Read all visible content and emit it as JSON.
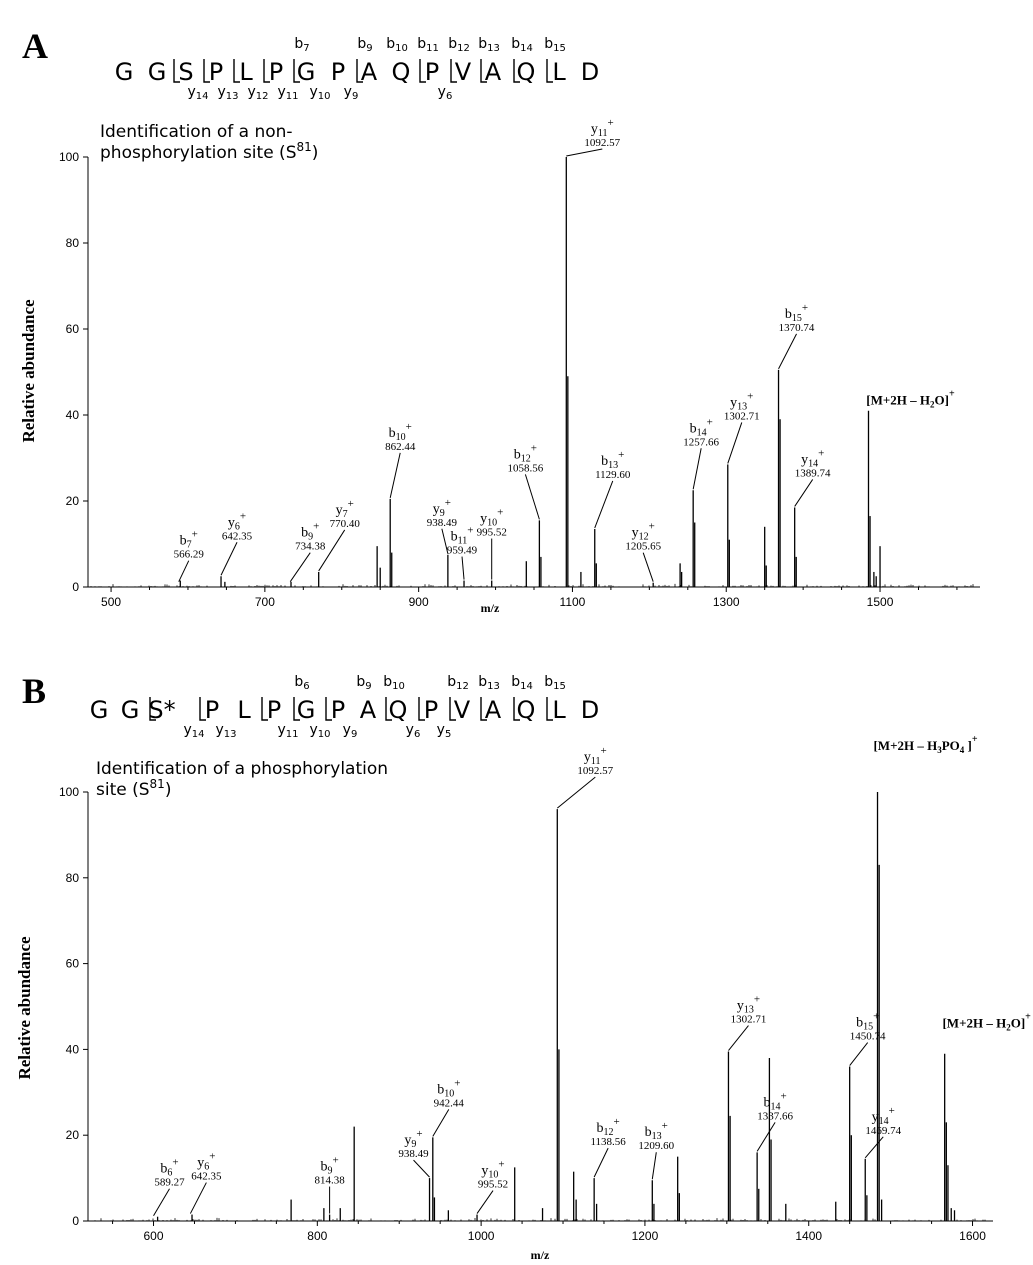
{
  "panels": [
    {
      "letter": "A",
      "sequence": [
        {
          "res": "G"
        },
        {
          "res": "G"
        },
        {
          "res": "S",
          "mark": true
        },
        {
          "res": "P",
          "mark": true
        },
        {
          "res": "L",
          "mark": true
        },
        {
          "res": "P",
          "mark": true
        },
        {
          "res": "G",
          "mark": true
        },
        {
          "res": "P"
        },
        {
          "res": "A",
          "mark": true
        },
        {
          "res": "Q"
        },
        {
          "res": "P",
          "mark": true
        },
        {
          "res": "V",
          "mark": true
        },
        {
          "res": "A",
          "mark": true
        },
        {
          "res": "Q",
          "mark": true
        },
        {
          "res": "L",
          "mark": true
        },
        {
          "res": "D"
        }
      ],
      "b_ions": [
        {
          "base": "b",
          "sub": "7"
        },
        {
          "base": "b",
          "sub": "9"
        },
        {
          "base": "b",
          "sub": "10"
        },
        {
          "base": "b",
          "sub": "11"
        },
        {
          "base": "b",
          "sub": "12"
        },
        {
          "base": "b",
          "sub": "13"
        },
        {
          "base": "b",
          "sub": "14"
        },
        {
          "base": "b",
          "sub": "15"
        }
      ],
      "y_ions": [
        {
          "base": "y",
          "sub": "14"
        },
        {
          "base": "y",
          "sub": "13"
        },
        {
          "base": "y",
          "sub": "12"
        },
        {
          "base": "y",
          "sub": "11"
        },
        {
          "base": "y",
          "sub": "10"
        },
        {
          "base": "y",
          "sub": "9"
        },
        {
          "base": "y",
          "sub": "6"
        }
      ],
      "subtitle_line1": "Identification of a non-",
      "subtitle_line2": "phosphorylation site (S",
      "subtitle_sup": "81",
      "subtitle_end": ")"
    },
    {
      "letter": "B",
      "sequence": [
        {
          "res": "G"
        },
        {
          "res": "G"
        },
        {
          "res": "S*",
          "mark": true
        },
        {
          "res": "P",
          "mark": true
        },
        {
          "res": "L"
        },
        {
          "res": "P",
          "mark": true
        },
        {
          "res": "G",
          "mark": true
        },
        {
          "res": "P",
          "mark": true
        },
        {
          "res": "A"
        },
        {
          "res": "Q",
          "mark": true
        },
        {
          "res": "P",
          "mark": true
        },
        {
          "res": "V",
          "mark": true
        },
        {
          "res": "A",
          "mark": true
        },
        {
          "res": "Q",
          "mark": true
        },
        {
          "res": "L",
          "mark": true
        },
        {
          "res": "D"
        }
      ],
      "b_ions": [
        {
          "base": "b",
          "sub": "6"
        },
        {
          "base": "b",
          "sub": "9"
        },
        {
          "base": "b",
          "sub": "10"
        },
        {
          "base": "b",
          "sub": "12"
        },
        {
          "base": "b",
          "sub": "13"
        },
        {
          "base": "b",
          "sub": "14"
        },
        {
          "base": "b",
          "sub": "15"
        }
      ],
      "y_ions": [
        {
          "base": "y",
          "sub": "14"
        },
        {
          "base": "y",
          "sub": "13"
        },
        {
          "base": "y",
          "sub": "11"
        },
        {
          "base": "y",
          "sub": "10"
        },
        {
          "base": "y",
          "sub": "9"
        },
        {
          "base": "y",
          "sub": "6"
        },
        {
          "base": "y",
          "sub": "5"
        }
      ],
      "subtitle_line1": "Identification of a phosphorylation",
      "subtitle_line2": "site (S",
      "subtitle_sup": "81",
      "subtitle_end": ")"
    }
  ],
  "chart_data": [
    {
      "type": "bar",
      "ylabel": "Relative abundance",
      "xlabel": "m/z",
      "xlim": [
        470,
        1630
      ],
      "ylim": [
        0,
        100
      ],
      "xticks": [
        500,
        700,
        900,
        1100,
        1300,
        1500
      ],
      "yticks": [
        0,
        20,
        40,
        60,
        80,
        100
      ],
      "peaks": [
        {
          "mz": 590,
          "ab": 1.5
        },
        {
          "mz": 643,
          "ab": 2.5
        },
        {
          "mz": 648,
          "ab": 1.2
        },
        {
          "mz": 734,
          "ab": 1.2
        },
        {
          "mz": 770,
          "ab": 3.5
        },
        {
          "mz": 846,
          "ab": 9.5
        },
        {
          "mz": 850,
          "ab": 4.5
        },
        {
          "mz": 863,
          "ab": 20.5
        },
        {
          "mz": 865,
          "ab": 8
        },
        {
          "mz": 938,
          "ab": 7.5
        },
        {
          "mz": 959,
          "ab": 1.5
        },
        {
          "mz": 995,
          "ab": 1.5
        },
        {
          "mz": 1040,
          "ab": 6
        },
        {
          "mz": 1057,
          "ab": 15.5
        },
        {
          "mz": 1059,
          "ab": 7
        },
        {
          "mz": 1092,
          "ab": 100
        },
        {
          "mz": 1094,
          "ab": 49
        },
        {
          "mz": 1111,
          "ab": 3.5
        },
        {
          "mz": 1129,
          "ab": 13.5
        },
        {
          "mz": 1131,
          "ab": 5.5
        },
        {
          "mz": 1205,
          "ab": 1
        },
        {
          "mz": 1240,
          "ab": 5.5
        },
        {
          "mz": 1242,
          "ab": 3.5
        },
        {
          "mz": 1257,
          "ab": 22.5
        },
        {
          "mz": 1259,
          "ab": 15
        },
        {
          "mz": 1302,
          "ab": 28.5
        },
        {
          "mz": 1304,
          "ab": 11
        },
        {
          "mz": 1350,
          "ab": 14
        },
        {
          "mz": 1352,
          "ab": 5
        },
        {
          "mz": 1368,
          "ab": 50.5
        },
        {
          "mz": 1370,
          "ab": 39
        },
        {
          "mz": 1389,
          "ab": 18.5
        },
        {
          "mz": 1391,
          "ab": 7
        },
        {
          "mz": 1485,
          "ab": 41
        },
        {
          "mz": 1487,
          "ab": 16.5
        },
        {
          "mz": 1492,
          "ab": 3.5
        },
        {
          "mz": 1495,
          "ab": 2.5
        },
        {
          "mz": 1500,
          "ab": 9.5
        }
      ],
      "annotations": [
        {
          "ion": "b",
          "sub": "7",
          "mz_label": "566.29",
          "mz": 588,
          "ab": 1
        },
        {
          "ion": "y",
          "sub": "6",
          "mz_label": "642.35",
          "mz": 643,
          "ab": 2.5
        },
        {
          "ion": "b",
          "sub": "9",
          "mz_label": "734.38",
          "mz": 733,
          "ab": 1
        },
        {
          "ion": "y",
          "sub": "7",
          "mz_label": "770.40",
          "mz": 770,
          "ab": 3.5
        },
        {
          "ion": "b",
          "sub": "10",
          "mz_label": "862.44",
          "mz": 863,
          "ab": 20.5
        },
        {
          "ion": "y",
          "sub": "9",
          "mz_label": "938.49",
          "mz": 938,
          "ab": 7.5
        },
        {
          "ion": "b",
          "sub": "11",
          "mz_label": "959.49",
          "mz": 959,
          "ab": 1.5
        },
        {
          "ion": "y",
          "sub": "10",
          "mz_label": "995.52",
          "mz": 995,
          "ab": 1.5
        },
        {
          "ion": "b",
          "sub": "12",
          "mz_label": "1058.56",
          "mz": 1057,
          "ab": 15.5
        },
        {
          "ion": "y",
          "sub": "11",
          "mz_label": "1092.57",
          "mz": 1092,
          "ab": 100
        },
        {
          "ion": "b",
          "sub": "13",
          "mz_label": "1129.60",
          "mz": 1129,
          "ab": 13.5
        },
        {
          "ion": "y",
          "sub": "12",
          "mz_label": "1205.65",
          "mz": 1205,
          "ab": 1
        },
        {
          "ion": "b",
          "sub": "14",
          "mz_label": "1257.66",
          "mz": 1257,
          "ab": 22.5
        },
        {
          "ion": "y",
          "sub": "13",
          "mz_label": "1302.71",
          "mz": 1302,
          "ab": 28.5
        },
        {
          "ion": "b",
          "sub": "15",
          "mz_label": "1370.74",
          "mz": 1368,
          "ab": 50.5
        },
        {
          "ion": "y",
          "sub": "14",
          "mz_label": "1389.74",
          "mz": 1389,
          "ab": 18.5
        },
        {
          "ion": "[M+2H – H2O]+",
          "mz": 1485,
          "ab": 41
        }
      ]
    },
    {
      "type": "bar",
      "ylabel": "Relative abundance",
      "xlabel": "m/z",
      "xlim": [
        520,
        1625
      ],
      "ylim": [
        0,
        100
      ],
      "xticks": [
        600,
        800,
        1000,
        1200,
        1400,
        1600
      ],
      "yticks": [
        0,
        20,
        40,
        60,
        80,
        100
      ],
      "peaks": [
        {
          "mz": 605,
          "ab": 1
        },
        {
          "mz": 647,
          "ab": 1.5
        },
        {
          "mz": 768,
          "ab": 5
        },
        {
          "mz": 808,
          "ab": 3
        },
        {
          "mz": 815,
          "ab": 1.5
        },
        {
          "mz": 828,
          "ab": 3
        },
        {
          "mz": 845,
          "ab": 22
        },
        {
          "mz": 937,
          "ab": 10
        },
        {
          "mz": 941,
          "ab": 19.5
        },
        {
          "mz": 943,
          "ab": 5.5
        },
        {
          "mz": 960,
          "ab": 2.5
        },
        {
          "mz": 995,
          "ab": 1.5
        },
        {
          "mz": 1041,
          "ab": 12.5
        },
        {
          "mz": 1075,
          "ab": 3
        },
        {
          "mz": 1093,
          "ab": 96
        },
        {
          "mz": 1095,
          "ab": 40
        },
        {
          "mz": 1113,
          "ab": 11.5
        },
        {
          "mz": 1116,
          "ab": 5
        },
        {
          "mz": 1138,
          "ab": 10
        },
        {
          "mz": 1141,
          "ab": 4
        },
        {
          "mz": 1209,
          "ab": 9.5
        },
        {
          "mz": 1211,
          "ab": 4
        },
        {
          "mz": 1240,
          "ab": 15
        },
        {
          "mz": 1242,
          "ab": 6.5
        },
        {
          "mz": 1302,
          "ab": 39.5
        },
        {
          "mz": 1304,
          "ab": 24.5
        },
        {
          "mz": 1337,
          "ab": 16
        },
        {
          "mz": 1339,
          "ab": 7.5
        },
        {
          "mz": 1352,
          "ab": 38
        },
        {
          "mz": 1354,
          "ab": 19
        },
        {
          "mz": 1372,
          "ab": 4
        },
        {
          "mz": 1433,
          "ab": 4.5
        },
        {
          "mz": 1450,
          "ab": 36
        },
        {
          "mz": 1452,
          "ab": 20
        },
        {
          "mz": 1469,
          "ab": 14.5
        },
        {
          "mz": 1471,
          "ab": 6
        },
        {
          "mz": 1484,
          "ab": 100
        },
        {
          "mz": 1486,
          "ab": 83
        },
        {
          "mz": 1489,
          "ab": 5
        },
        {
          "mz": 1566,
          "ab": 39
        },
        {
          "mz": 1568,
          "ab": 23
        },
        {
          "mz": 1570,
          "ab": 13
        },
        {
          "mz": 1574,
          "ab": 3
        },
        {
          "mz": 1578,
          "ab": 2.5
        }
      ],
      "annotations": [
        {
          "ion": "b",
          "sub": "6",
          "mz_label": "589.27",
          "mz": 600,
          "ab": 1
        },
        {
          "ion": "y",
          "sub": "6",
          "mz_label": "642.35",
          "mz": 645,
          "ab": 1.5
        },
        {
          "ion": "b",
          "sub": "9",
          "mz_label": "814.38",
          "mz": 815,
          "ab": 1.5
        },
        {
          "ion": "y",
          "sub": "9",
          "mz_label": "938.49",
          "mz": 937,
          "ab": 10
        },
        {
          "ion": "b",
          "sub": "10",
          "mz_label": "942.44",
          "mz": 941,
          "ab": 19.5
        },
        {
          "ion": "y",
          "sub": "10",
          "mz_label": "995.52",
          "mz": 995,
          "ab": 1.5
        },
        {
          "ion": "y",
          "sub": "11",
          "mz_label": "1092.57",
          "mz": 1093,
          "ab": 96
        },
        {
          "ion": "b",
          "sub": "12",
          "mz_label": "1138.56",
          "mz": 1138,
          "ab": 10
        },
        {
          "ion": "b",
          "sub": "13",
          "mz_label": "1209.60",
          "mz": 1209,
          "ab": 9.5
        },
        {
          "ion": "y",
          "sub": "13",
          "mz_label": "1302.71",
          "mz": 1302,
          "ab": 39.5
        },
        {
          "ion": "b",
          "sub": "14",
          "mz_label": "1337.66",
          "mz": 1337,
          "ab": 16
        },
        {
          "ion": "b",
          "sub": "15",
          "mz_label": "1450.74",
          "mz": 1450,
          "ab": 36
        },
        {
          "ion": "y",
          "sub": "14",
          "mz_label": "1469.74",
          "mz": 1469,
          "ab": 14.5
        },
        {
          "ion": "[M+2H – H3PO4 ]+",
          "mz": 1484,
          "ab": 100
        },
        {
          "ion": "[M+2H – H2O]+",
          "mz": 1566,
          "ab": 39
        }
      ]
    }
  ]
}
